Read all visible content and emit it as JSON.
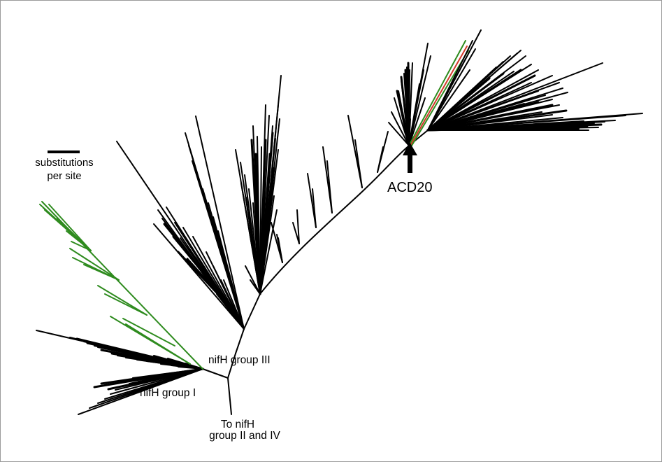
{
  "scale_bar": {
    "label_line1": "substitutions",
    "label_line2": "per site"
  },
  "labels": {
    "group_III": "nifH group III",
    "group_I": "nifH group I",
    "to_nifh_line1": "To nifH",
    "to_nifh_line2": "group II and IV",
    "acd20": "ACD20"
  },
  "colors": {
    "branch_default": "#000000",
    "highlight_green": "#2e8b1e",
    "highlight_red": "#d2382a",
    "frame_border": "#9a9a9a"
  },
  "icons": {
    "acd20_marker": "arrow-up-icon"
  }
}
